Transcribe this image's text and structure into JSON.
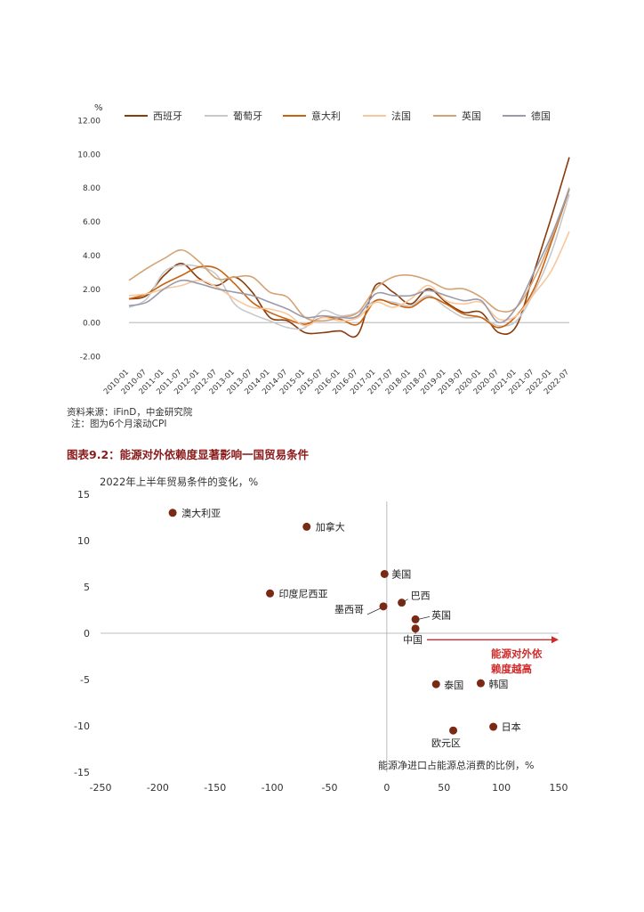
{
  "source_note": "资料来源：iFinD，中金研究院",
  "note": "注：图为6个月滚动CPI",
  "figure_title": "图表9.2：能源对外依赖度显著影响一国贸易条件",
  "chart_data": [
    {
      "type": "line",
      "ylabel": "%",
      "ylim": [
        -2,
        12
      ],
      "yticks": [
        "-2.00",
        "0.00",
        "2.00",
        "4.00",
        "6.00",
        "8.00",
        "10.00",
        "12.00"
      ],
      "ytick_values": [
        -2,
        0,
        2,
        4,
        6,
        8,
        10,
        12
      ],
      "categories": [
        "2010-01",
        "2010-07",
        "2011-01",
        "2011-07",
        "2012-01",
        "2012-07",
        "2013-01",
        "2013-07",
        "2014-01",
        "2014-07",
        "2015-01",
        "2015-07",
        "2016-01",
        "2016-07",
        "2017-01",
        "2017-07",
        "2018-01",
        "2018-07",
        "2019-01",
        "2019-07",
        "2020-01",
        "2020-07",
        "2021-01",
        "2021-07",
        "2022-01",
        "2022-07"
      ],
      "legend_position": "top",
      "grid": false,
      "series": [
        {
          "name": "西班牙",
          "color": "#8a3b0b",
          "values": [
            1.4,
            1.6,
            2.8,
            3.5,
            2.6,
            2.2,
            2.7,
            1.8,
            0.3,
            0.1,
            -0.6,
            -0.6,
            -0.5,
            -0.7,
            2.2,
            1.8,
            1.1,
            2.0,
            1.2,
            0.6,
            0.6,
            -0.6,
            -0.2,
            3.0,
            6.3,
            9.8
          ]
        },
        {
          "name": "葡萄牙",
          "color": "#c8c8c8",
          "values": [
            0.9,
            1.4,
            3.0,
            3.4,
            3.3,
            2.8,
            1.1,
            0.5,
            0.1,
            -0.3,
            -0.3,
            0.7,
            0.4,
            0.6,
            1.3,
            1.2,
            1.0,
            1.6,
            0.9,
            0.3,
            0.3,
            -0.2,
            0.1,
            1.8,
            4.2,
            7.6
          ]
        },
        {
          "name": "意大利",
          "color": "#c8620f",
          "values": [
            1.4,
            1.7,
            2.3,
            2.8,
            3.3,
            3.2,
            2.3,
            1.2,
            0.6,
            0.2,
            -0.1,
            0.3,
            0.2,
            -0.1,
            1.3,
            1.1,
            0.9,
            1.5,
            1.1,
            0.5,
            0.3,
            -0.3,
            0.4,
            2.0,
            4.8,
            7.9
          ]
        },
        {
          "name": "法国",
          "color": "#f8c79c",
          "values": [
            1.6,
            1.7,
            2.0,
            2.2,
            2.5,
            2.1,
            1.4,
            0.9,
            0.8,
            0.5,
            -0.2,
            0.3,
            0.1,
            0.3,
            1.2,
            0.9,
            1.4,
            2.2,
            1.3,
            1.1,
            1.2,
            0.2,
            0.4,
            1.7,
            3.1,
            5.4
          ]
        },
        {
          "name": "英国",
          "color": "#d5a274",
          "values": [
            2.5,
            3.2,
            3.8,
            4.3,
            3.6,
            2.6,
            2.7,
            2.7,
            1.8,
            1.5,
            0.3,
            0.1,
            0.3,
            0.6,
            2.0,
            2.7,
            2.8,
            2.5,
            2.0,
            2.0,
            1.5,
            0.7,
            0.9,
            2.6,
            5.0,
            8.0
          ]
        },
        {
          "name": "德国",
          "color": "#9a9aaa",
          "values": [
            1.0,
            1.2,
            2.0,
            2.5,
            2.3,
            2.0,
            1.8,
            1.6,
            1.2,
            0.8,
            0.3,
            0.4,
            0.3,
            0.4,
            1.7,
            1.6,
            1.6,
            1.9,
            1.6,
            1.3,
            1.3,
            0.0,
            0.9,
            3.0,
            5.2,
            7.9
          ]
        }
      ]
    },
    {
      "type": "scatter",
      "title": "2022年上半年贸易条件的变化，%",
      "xlabel": "能源净进口占能源总消费的比例，%",
      "xlim": [
        -250,
        150
      ],
      "ylim": [
        -15,
        15
      ],
      "xticks": [
        -250,
        -200,
        -150,
        -100,
        -50,
        0,
        50,
        100,
        150
      ],
      "yticks": [
        15,
        10,
        5,
        0,
        -5,
        -10,
        -15
      ],
      "point_color": "#7a2a14",
      "points": [
        {
          "name": "澳大利亚",
          "x": -187,
          "y": 13.0
        },
        {
          "name": "加拿大",
          "x": -70,
          "y": 11.5
        },
        {
          "name": "美国",
          "x": -2,
          "y": 6.4
        },
        {
          "name": "印度尼西亚",
          "x": -102,
          "y": 4.3
        },
        {
          "name": "巴西",
          "x": 13,
          "y": 3.3
        },
        {
          "name": "墨西哥",
          "x": -3,
          "y": 2.9
        },
        {
          "name": "英国",
          "x": 25,
          "y": 1.5
        },
        {
          "name": "中国",
          "x": 25,
          "y": 0.5
        },
        {
          "name": "泰国",
          "x": 43,
          "y": -5.5
        },
        {
          "name": "韩国",
          "x": 82,
          "y": -5.4
        },
        {
          "name": "日本",
          "x": 93,
          "y": -10.1
        },
        {
          "name": "欧元区",
          "x": 58,
          "y": -10.5
        }
      ],
      "annotation": {
        "lines": [
          "能源对外依",
          "赖度越高"
        ],
        "color": "#d12a2a",
        "arrow_from_x": 35,
        "arrow_to_x": 150,
        "y": -0.7
      }
    }
  ]
}
